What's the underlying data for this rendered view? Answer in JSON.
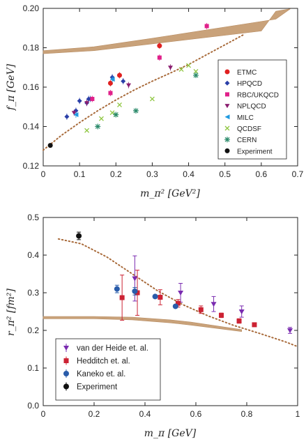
{
  "chart_data": [
    {
      "type": "scatter",
      "xlabel": "m_π² [GeV²]",
      "ylabel": "f_π [GeV]",
      "xlim": [
        0,
        0.7
      ],
      "ylim": [
        0.12,
        0.2
      ],
      "xticks": [
        "0",
        "0.1",
        "0.2",
        "0.3",
        "0.4",
        "0.5",
        "0.6",
        "0.7"
      ],
      "yticks": [
        "0.12",
        "0.14",
        "0.16",
        "0.18",
        "0.20"
      ],
      "legend_position": "right",
      "band": {
        "x": [
          0,
          0.14,
          0.3,
          0.64,
          0.68,
          0.64,
          0.6,
          0.3,
          0.14,
          0
        ],
        "y": [
          0.1785,
          0.1805,
          0.1848,
          0.1945,
          0.1998,
          0.1985,
          0.1885,
          0.182,
          0.1785,
          0.177
        ]
      },
      "dotted_curve": {
        "x": [
          0,
          0.05,
          0.1,
          0.15,
          0.2,
          0.25,
          0.3,
          0.35,
          0.4,
          0.45,
          0.5,
          0.55
        ],
        "y": [
          0.128,
          0.1355,
          0.142,
          0.148,
          0.1535,
          0.1585,
          0.163,
          0.1672,
          0.1715,
          0.1765,
          0.1815,
          0.1865
        ]
      },
      "series": [
        {
          "name": "ETMC",
          "marker": "circle",
          "color": "#e02020",
          "x": [
            0.185,
            0.21,
            0.32
          ],
          "y": [
            0.162,
            0.166,
            0.181
          ]
        },
        {
          "name": "HPQCD",
          "marker": "diamond",
          "color": "#2a3fa8",
          "x": [
            0.065,
            0.09,
            0.1,
            0.125,
            0.13,
            0.19,
            0.22,
            0.12
          ],
          "y": [
            0.145,
            0.148,
            0.153,
            0.154,
            0.154,
            0.165,
            0.163,
            0.152
          ]
        },
        {
          "name": "RBC/UKQCD",
          "marker": "square",
          "color": "#e0208a",
          "x": [
            0.135,
            0.185,
            0.32,
            0.45
          ],
          "y": [
            0.154,
            0.157,
            0.175,
            0.191
          ]
        },
        {
          "name": "NPLQCD",
          "marker": "triangle-down",
          "color": "#8a1d6f",
          "x": [
            0.085,
            0.12,
            0.235,
            0.35
          ],
          "y": [
            0.147,
            0.152,
            0.161,
            0.17
          ]
        },
        {
          "name": "MILC",
          "marker": "triangle-left",
          "color": "#1e9ae0",
          "x": [
            0.09,
            0.19
          ],
          "y": [
            0.146,
            0.164
          ]
        },
        {
          "name": "QCDSF",
          "marker": "x",
          "color": "#8ec63f",
          "x": [
            0.12,
            0.16,
            0.19,
            0.2,
            0.21,
            0.3,
            0.38,
            0.4,
            0.42
          ],
          "y": [
            0.138,
            0.144,
            0.147,
            0.146,
            0.151,
            0.154,
            0.169,
            0.171,
            0.168
          ]
        },
        {
          "name": "CERN",
          "marker": "asterisk",
          "color": "#2a8a6a",
          "x": [
            0.15,
            0.2,
            0.255,
            0.42
          ],
          "y": [
            0.14,
            0.146,
            0.148,
            0.166
          ]
        },
        {
          "name": "Experiment",
          "marker": "circle-small",
          "color": "#111111",
          "x": [
            0.0195
          ],
          "y": [
            0.1304
          ]
        }
      ]
    },
    {
      "type": "scatter",
      "xlabel": "m_π [GeV]",
      "ylabel": "r_π² [fm²]",
      "xlim": [
        0,
        1.0
      ],
      "ylim": [
        0,
        0.5
      ],
      "xticks": [
        "0",
        "0.2",
        "0.4",
        "0.6",
        "0.8",
        "1"
      ],
      "yticks": [
        "0.0",
        "0.1",
        "0.2",
        "0.3",
        "0.4",
        "0.5"
      ],
      "legend_position": "bottom-left",
      "band": {
        "x": [
          0,
          0.2,
          0.35,
          0.5,
          0.58,
          0.78,
          0.78,
          0.58,
          0.5,
          0.35,
          0.2,
          0
        ],
        "y": [
          0.237,
          0.237,
          0.235,
          0.228,
          0.222,
          0.202,
          0.197,
          0.214,
          0.22,
          0.228,
          0.231,
          0.231
        ]
      },
      "dotted_curve": {
        "x": [
          0.06,
          0.15,
          0.25,
          0.35,
          0.45,
          0.55,
          0.65,
          0.75,
          0.85,
          0.95,
          1.0
        ],
        "y": [
          0.443,
          0.43,
          0.395,
          0.35,
          0.305,
          0.268,
          0.238,
          0.213,
          0.192,
          0.17,
          0.157
        ]
      },
      "series": [
        {
          "name": "van der Heide et. al.",
          "marker": "triangle-down",
          "color": "#7a2bb0",
          "x": [
            0.36,
            0.54,
            0.67,
            0.78,
            0.97
          ],
          "y": [
            0.338,
            0.3,
            0.27,
            0.25,
            0.2
          ],
          "err": [
            0.06,
            0.025,
            0.02,
            0.015,
            0.008
          ]
        },
        {
          "name": "Hedditch et. al.",
          "marker": "square",
          "color": "#cc2233",
          "x": [
            0.31,
            0.37,
            0.46,
            0.53,
            0.62,
            0.7,
            0.77,
            0.83
          ],
          "y": [
            0.287,
            0.3,
            0.288,
            0.272,
            0.255,
            0.24,
            0.225,
            0.215
          ],
          "err": [
            0.06,
            0.06,
            0.02,
            0.01,
            0.01,
            0.006,
            0.006,
            0.004
          ]
        },
        {
          "name": "Kaneko et. al.",
          "marker": "circle",
          "color": "#2a5caa",
          "x": [
            0.29,
            0.36,
            0.44,
            0.52
          ],
          "y": [
            0.31,
            0.304,
            0.29,
            0.264
          ],
          "err": [
            0.01,
            0.01,
            0.004,
            0.004
          ]
        },
        {
          "name": "Experiment",
          "marker": "circle",
          "color": "#111111",
          "x": [
            0.14
          ],
          "y": [
            0.451
          ],
          "err": [
            0.01
          ]
        }
      ]
    }
  ]
}
